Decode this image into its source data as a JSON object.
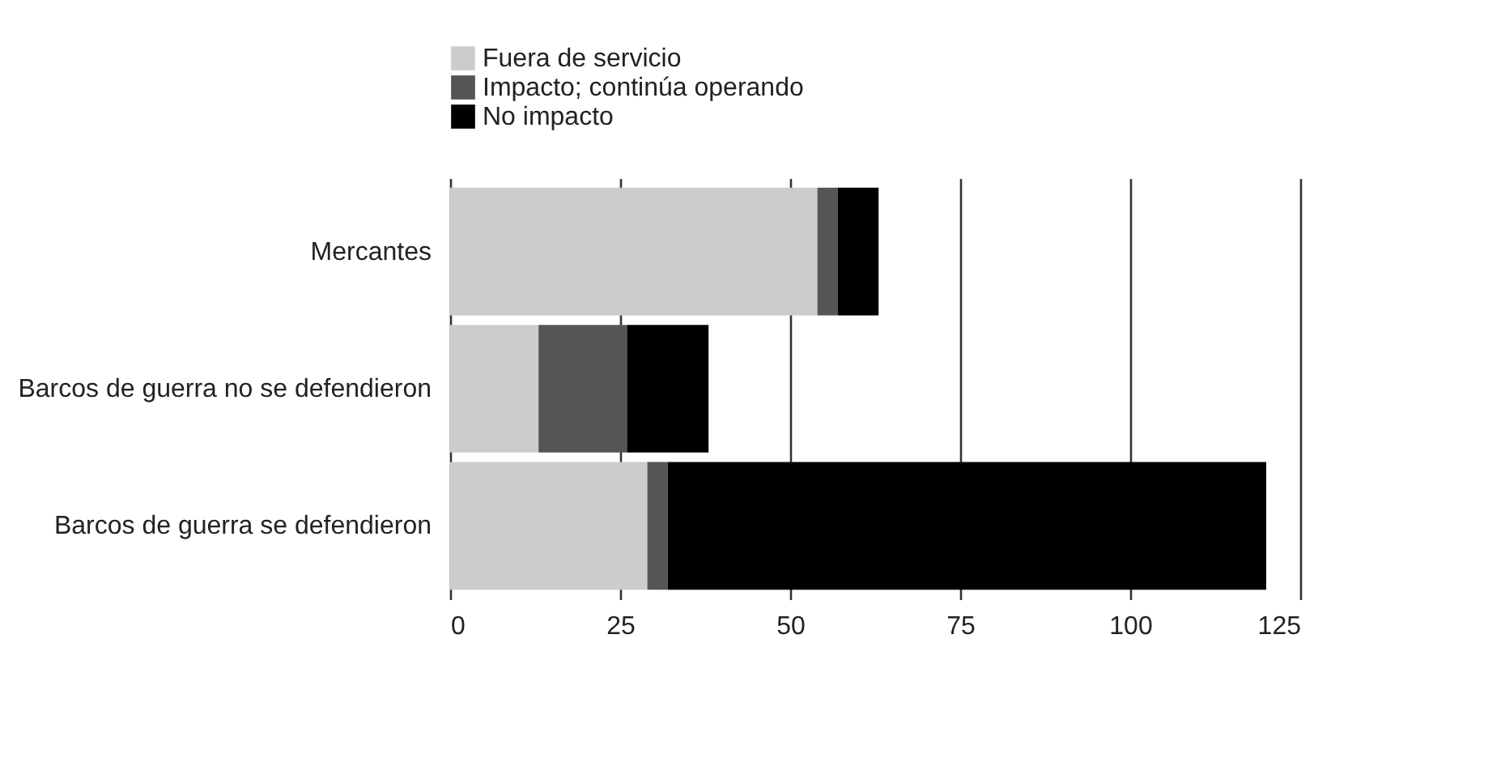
{
  "chart_data": {
    "type": "bar",
    "orientation": "horizontal",
    "stacked": true,
    "categories": [
      "Mercantes",
      "Barcos de guerra no se defendieron",
      "Barcos de guerra se defendieron"
    ],
    "series": [
      {
        "name": "Fuera de servicio",
        "color": "#cccccc",
        "values": [
          54,
          13,
          29
        ]
      },
      {
        "name": "Impacto; continúa operando",
        "color": "#555555",
        "values": [
          3,
          13,
          3
        ]
      },
      {
        "name": "No impacto",
        "color": "#000000",
        "values": [
          6,
          12,
          88
        ]
      }
    ],
    "xlim": [
      0,
      125
    ],
    "xticks": [
      0,
      25,
      50,
      75,
      100,
      125
    ],
    "grid": "x",
    "legend": "top"
  }
}
